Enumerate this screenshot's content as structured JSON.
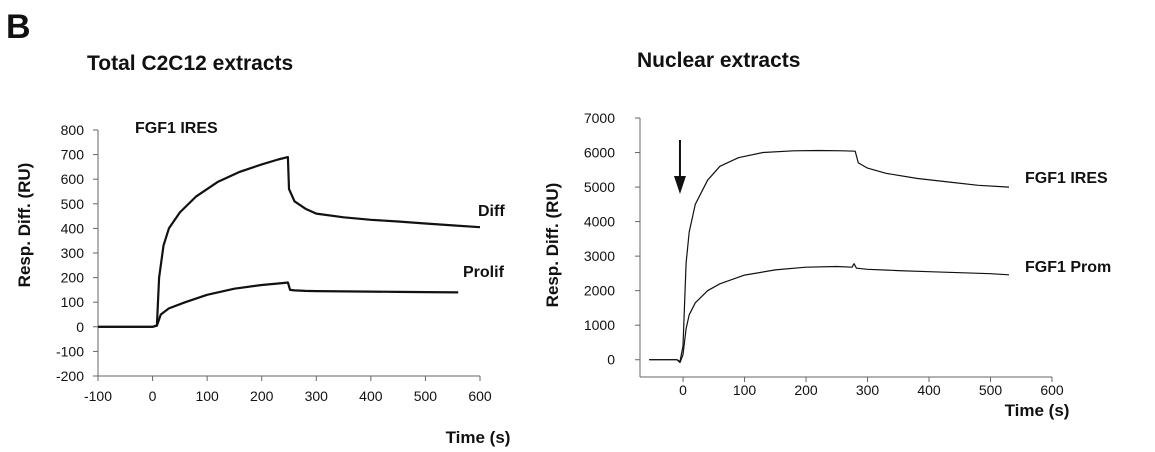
{
  "panel_label": "B",
  "chart_data": [
    {
      "type": "line",
      "title": "Total C2C12  extracts",
      "annotation": "FGF1 IRES",
      "xlabel": "Time (s)",
      "ylabel": "Resp. Diff. (RU)",
      "xlim": [
        -100,
        600
      ],
      "ylim": [
        -200,
        800
      ],
      "xticks": [
        -100,
        0,
        100,
        200,
        300,
        400,
        500,
        600
      ],
      "yticks": [
        -200,
        -100,
        0,
        100,
        200,
        300,
        400,
        500,
        600,
        700,
        800
      ],
      "grid": false,
      "legend": "inline labels",
      "series": [
        {
          "name": "Diff",
          "x": [
            -100,
            0,
            8,
            12,
            20,
            30,
            50,
            80,
            120,
            160,
            200,
            230,
            248,
            250,
            260,
            280,
            300,
            350,
            400,
            450,
            500,
            550,
            600
          ],
          "y": [
            0,
            0,
            5,
            200,
            330,
            400,
            465,
            530,
            590,
            630,
            660,
            680,
            690,
            560,
            510,
            480,
            460,
            445,
            435,
            428,
            420,
            412,
            405
          ]
        },
        {
          "name": "Prolif",
          "x": [
            -100,
            0,
            8,
            15,
            30,
            60,
            100,
            150,
            200,
            240,
            248,
            252,
            260,
            280,
            300,
            350,
            400,
            450,
            500,
            560
          ],
          "y": [
            0,
            0,
            5,
            50,
            75,
            100,
            130,
            155,
            170,
            178,
            180,
            150,
            148,
            146,
            145,
            144,
            143,
            142,
            141,
            140
          ]
        }
      ]
    },
    {
      "type": "line",
      "title": "Nuclear extracts",
      "xlabel": "Time (s)",
      "ylabel": "Resp. Diff. (RU)",
      "xlim": [
        -70,
        600
      ],
      "ylim": [
        -500,
        7000
      ],
      "xticks": [
        0,
        100,
        200,
        300,
        400,
        500,
        600
      ],
      "yticks": [
        0,
        1000,
        2000,
        3000,
        4000,
        5000,
        6000,
        7000
      ],
      "grid": false,
      "legend": "inline labels",
      "arrow_at_x": -5,
      "series": [
        {
          "name": "FGF1 IRES",
          "x": [
            -55,
            -10,
            -5,
            0,
            5,
            10,
            20,
            40,
            60,
            90,
            130,
            180,
            220,
            260,
            280,
            285,
            300,
            330,
            380,
            430,
            480,
            530
          ],
          "y": [
            0,
            0,
            -50,
            400,
            2800,
            3700,
            4500,
            5200,
            5600,
            5850,
            6000,
            6050,
            6060,
            6050,
            6040,
            5700,
            5550,
            5400,
            5250,
            5150,
            5050,
            5000
          ]
        },
        {
          "name": "FGF1 Prom",
          "x": [
            -55,
            -10,
            -5,
            0,
            5,
            10,
            20,
            40,
            60,
            100,
            150,
            200,
            250,
            275,
            278,
            282,
            300,
            350,
            400,
            450,
            500,
            530
          ],
          "y": [
            0,
            0,
            -80,
            150,
            900,
            1300,
            1650,
            2000,
            2200,
            2450,
            2600,
            2680,
            2700,
            2680,
            2780,
            2650,
            2620,
            2580,
            2550,
            2520,
            2490,
            2460
          ]
        }
      ]
    }
  ]
}
